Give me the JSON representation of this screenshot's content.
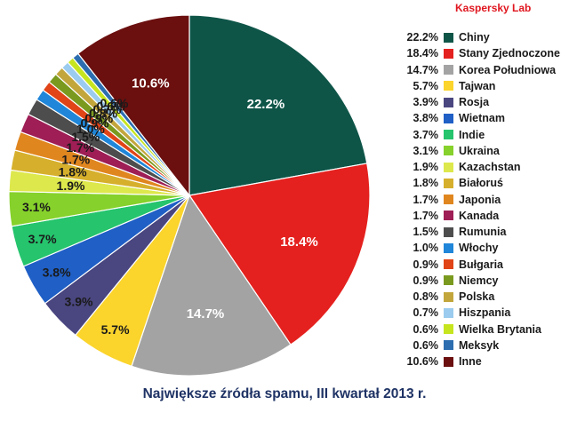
{
  "brand": "Kaspersky Lab",
  "title": "Największe źródła spamu, III kwartał 2013 r.",
  "chart_data": {
    "type": "pie",
    "title": "Największe źródła spamu, III kwartał 2013 r.",
    "legend_position": "right",
    "slices": [
      {
        "label": "Chiny",
        "value": 22.2,
        "pct_label": "22.2%",
        "color": "#0e5548"
      },
      {
        "label": "Stany Zjednoczone",
        "value": 18.4,
        "pct_label": "18.4%",
        "color": "#e4211e"
      },
      {
        "label": "Korea Południowa",
        "value": 14.7,
        "pct_label": "14.7%",
        "color": "#a3a3a3"
      },
      {
        "label": "Tajwan",
        "value": 5.7,
        "pct_label": "5.7%",
        "color": "#fbd42c"
      },
      {
        "label": "Rosja",
        "value": 3.9,
        "pct_label": "3.9%",
        "color": "#4a4680"
      },
      {
        "label": "Wietnam",
        "value": 3.8,
        "pct_label": "3.8%",
        "color": "#1f5fc6"
      },
      {
        "label": "Indie",
        "value": 3.7,
        "pct_label": "3.7%",
        "color": "#25c46d"
      },
      {
        "label": "Ukraina",
        "value": 3.1,
        "pct_label": "3.1%",
        "color": "#86d12b"
      },
      {
        "label": "Kazachstan",
        "value": 1.9,
        "pct_label": "1.9%",
        "color": "#dde84c"
      },
      {
        "label": "Białoruś",
        "value": 1.8,
        "pct_label": "1.8%",
        "color": "#d6b02c"
      },
      {
        "label": "Japonia",
        "value": 1.7,
        "pct_label": "1.7%",
        "color": "#e0861f"
      },
      {
        "label": "Kanada",
        "value": 1.7,
        "pct_label": "1.7%",
        "color": "#9e1e55"
      },
      {
        "label": "Rumunia",
        "value": 1.5,
        "pct_label": "1.5%",
        "color": "#4d4d4d"
      },
      {
        "label": "Włochy",
        "value": 1.0,
        "pct_label": "1.0%",
        "color": "#1f86d9"
      },
      {
        "label": "Bułgaria",
        "value": 0.9,
        "pct_label": "0.9%",
        "color": "#e04417"
      },
      {
        "label": "Niemcy",
        "value": 0.9,
        "pct_label": "0.9%",
        "color": "#7a9a1f"
      },
      {
        "label": "Polska",
        "value": 0.8,
        "pct_label": "0.8%",
        "color": "#c2a63c"
      },
      {
        "label": "Hiszpania",
        "value": 0.7,
        "pct_label": "0.7%",
        "color": "#9bcbee"
      },
      {
        "label": "Wielka Brytania",
        "value": 0.6,
        "pct_label": "0.6%",
        "color": "#c7e51f"
      },
      {
        "label": "Meksyk",
        "value": 0.6,
        "pct_label": "0.6%",
        "color": "#2d6eb0"
      },
      {
        "label": "Inne",
        "value": 10.6,
        "pct_label": "10.6%",
        "color": "#6b0f0f"
      }
    ]
  }
}
